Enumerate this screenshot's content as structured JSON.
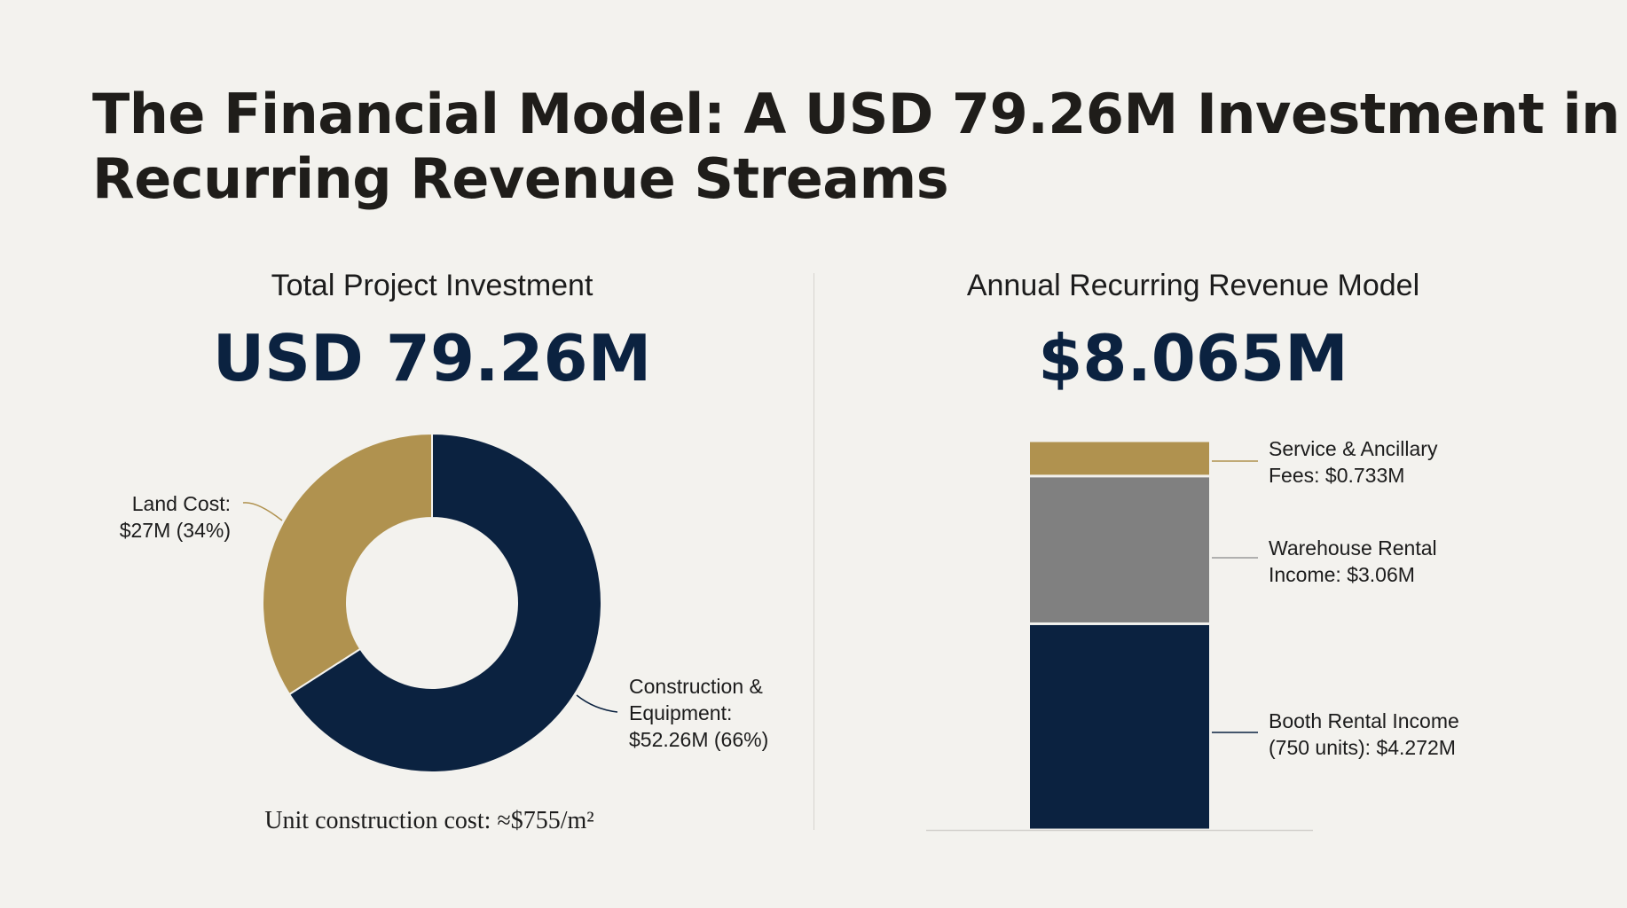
{
  "title": {
    "line1": "The Financial Model: A USD 79.26M Investment in",
    "line2": "Recurring Revenue Streams"
  },
  "left": {
    "heading": "Total Project Investment",
    "value": "USD 79.26M",
    "note": "Unit construction cost: ≈$755/m²"
  },
  "right": {
    "heading": "Annual Recurring Revenue Model",
    "value": "$8.065M"
  },
  "colors": {
    "navy": "#0b2240",
    "gold": "#b0924f",
    "gray": "#808080",
    "background": "#f3f2ee"
  },
  "chart_data": [
    {
      "type": "pie",
      "variant": "donut",
      "title": "Total Project Investment",
      "slices": [
        {
          "name": "Construction & Equipment",
          "value": 52.26,
          "percent": 66,
          "color": "#0b2240",
          "label_lines": [
            "Construction &",
            "Equipment:",
            "$52.26M (66%)"
          ]
        },
        {
          "name": "Land Cost",
          "value": 27,
          "percent": 34,
          "color": "#b0924f",
          "label_lines": [
            "Land Cost:",
            "$27M (34%)"
          ]
        }
      ],
      "unit": "USD M"
    },
    {
      "type": "bar",
      "variant": "stacked",
      "title": "Annual Recurring Revenue Model",
      "total": 8.065,
      "unit": "USD M",
      "segments": [
        {
          "name": "Booth Rental Income",
          "value": 4.272,
          "color": "#0b2240",
          "label_lines": [
            "Booth Rental Income",
            "(750 units): $4.272M"
          ]
        },
        {
          "name": "Warehouse Rental Income",
          "value": 3.06,
          "color": "#808080",
          "label_lines": [
            "Warehouse Rental",
            "Income: $3.06M"
          ]
        },
        {
          "name": "Service & Ancillary Fees",
          "value": 0.733,
          "color": "#b0924f",
          "label_lines": [
            "Service & Ancillary",
            "Fees: $0.733M"
          ]
        }
      ]
    }
  ]
}
